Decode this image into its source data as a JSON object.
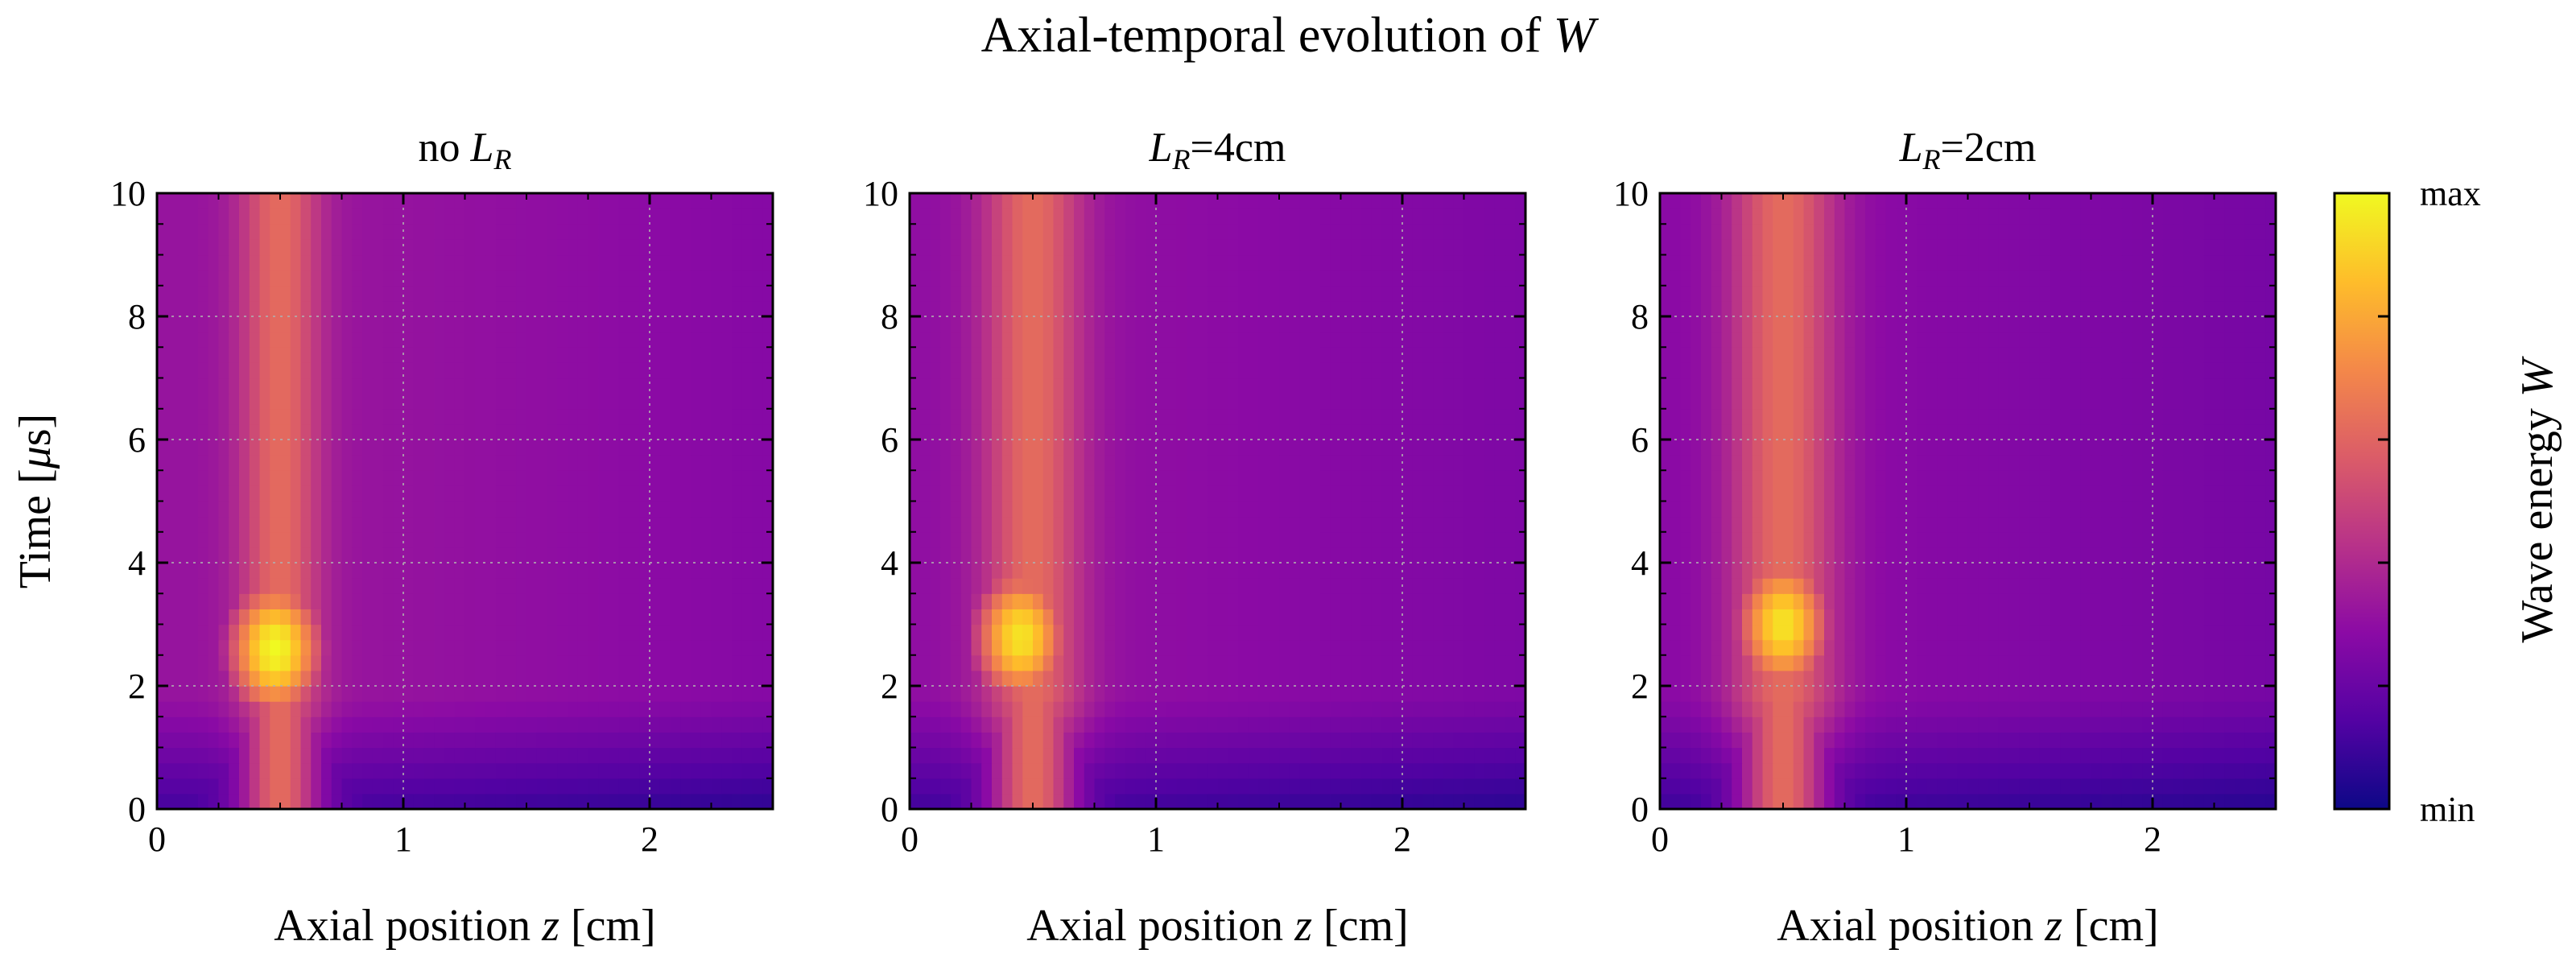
{
  "figure": {
    "title_plain": "Axial-temporal evolution of ",
    "title_italic": "W"
  },
  "colorbar": {
    "label_plain": "Wave energy ",
    "label_italic": "W",
    "max_label": "max",
    "min_label": "min",
    "colormap": [
      "#0d0887",
      "#5302a3",
      "#8b0aa5",
      "#b83289",
      "#db5c68",
      "#f48849",
      "#febd2a",
      "#f0f921"
    ]
  },
  "chart_data": [
    {
      "type": "heatmap",
      "title_prefix": "no ",
      "title_var": "L",
      "title_sub": "R",
      "title_suffix": "",
      "xlabel_plain": "Axial position ",
      "xlabel_italic": "z",
      "xlabel_unit": " [cm]",
      "ylabel_prefix": "Time [",
      "ylabel_mu": "μ",
      "ylabel_suffix": "s]",
      "xlim": [
        0,
        2.5
      ],
      "ylim": [
        0,
        10
      ],
      "xticks": [
        0,
        1,
        2
      ],
      "yticks": [
        0,
        2,
        4,
        6,
        8,
        10
      ],
      "xtick_labels": [
        "0",
        "1",
        "2"
      ],
      "ytick_labels": [
        "0",
        "2",
        "4",
        "6",
        "8",
        "10"
      ],
      "grid": true,
      "features": {
        "column_center_cm": 0.5,
        "column_width_cm": 0.2,
        "hotspot": {
          "z_cm": 0.48,
          "t_us": 2.6,
          "level": 1.0
        },
        "early_time_dark_until_us": 1.8,
        "right_region_level": 0.32
      }
    },
    {
      "type": "heatmap",
      "title_prefix": "",
      "title_var": "L",
      "title_sub": "R",
      "title_suffix": "=4cm",
      "xlabel_plain": "Axial position ",
      "xlabel_italic": "z",
      "xlabel_unit": " [cm]",
      "ylabel_prefix": "",
      "ylabel_mu": "",
      "ylabel_suffix": "",
      "xlim": [
        0,
        2.5
      ],
      "ylim": [
        0,
        10
      ],
      "xticks": [
        0,
        1,
        2
      ],
      "yticks": [
        0,
        2,
        4,
        6,
        8,
        10
      ],
      "xtick_labels": [
        "0",
        "1",
        "2"
      ],
      "ytick_labels": [
        "0",
        "2",
        "4",
        "6",
        "8",
        "10"
      ],
      "grid": true,
      "features": {
        "column_center_cm": 0.5,
        "column_width_cm": 0.25,
        "hotspot": {
          "z_cm": 0.45,
          "t_us": 2.8,
          "level": 0.95
        },
        "early_time_dark_until_us": 1.8,
        "right_region_level": 0.3
      }
    },
    {
      "type": "heatmap",
      "title_prefix": "",
      "title_var": "L",
      "title_sub": "R",
      "title_suffix": "=2cm",
      "xlabel_plain": "Axial position ",
      "xlabel_italic": "z",
      "xlabel_unit": " [cm]",
      "ylabel_prefix": "",
      "ylabel_mu": "",
      "ylabel_suffix": "",
      "xlim": [
        0,
        2.5
      ],
      "ylim": [
        0,
        10
      ],
      "xticks": [
        0,
        1,
        2
      ],
      "yticks": [
        0,
        2,
        4,
        6,
        8,
        10
      ],
      "xtick_labels": [
        "0",
        "1",
        "2"
      ],
      "ytick_labels": [
        "0",
        "2",
        "4",
        "6",
        "8",
        "10"
      ],
      "grid": true,
      "features": {
        "column_center_cm": 0.5,
        "column_width_cm": 0.27,
        "hotspot": {
          "z_cm": 0.5,
          "t_us": 3.0,
          "level": 0.95
        },
        "early_time_dark_until_us": 1.8,
        "right_region_level": 0.28
      }
    }
  ]
}
